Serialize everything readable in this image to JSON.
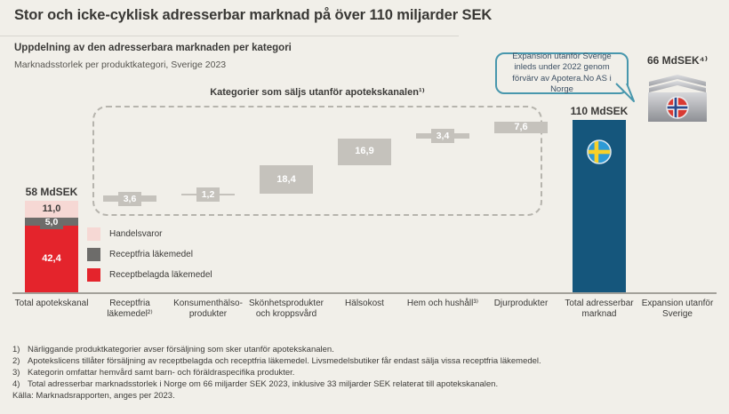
{
  "page": {
    "title": "Stor och icke-cyklisk adresserbar marknad på över 110 miljarder SEK",
    "subtitle": "Uppdelning av den adresserbara marknaden per kategori",
    "description": "Marknadsstorlek per produktkategori, Sverige 2023"
  },
  "callout": {
    "text": "Expansion utanför Sverige inleds under 2022 genom förvärv av Apotera.No AS i Norge",
    "border_color": "#4897ad"
  },
  "chart_data": {
    "type": "waterfall",
    "unit": "MdSEK",
    "axis_max": 110,
    "group_box_label": "Kategorier som säljs utanför apotekskanalen¹⁾",
    "colors": {
      "waterfall_bar": "#c5c2bc",
      "total_bar": "#15567c",
      "background": "#f1efe9"
    },
    "start_bar": {
      "category": "Total apotekskanal",
      "total": 58,
      "total_label": "58 MdSEK",
      "segments": [
        {
          "name": "Receptbelagda läkemedel",
          "value": 42.4,
          "label": "42,4",
          "color": "#e4242c"
        },
        {
          "name": "Receptfria läkemedel",
          "value": 5.0,
          "label": "5,0",
          "color": "#6d6c6a"
        },
        {
          "name": "Handelsvaror",
          "value": 11.0,
          "label": "11,0",
          "color": "#f6d8d4",
          "label_color": "#3b3a38"
        }
      ]
    },
    "waterfall_bars": [
      {
        "category": "Receptfria läkemedel²⁾",
        "value": 3.6,
        "label": "3,6"
      },
      {
        "category": "Konsumenthälso-produkter",
        "value": 1.2,
        "label": "1,2"
      },
      {
        "category": "Skönhetsprodukter och kroppsvård",
        "value": 18.4,
        "label": "18,4"
      },
      {
        "category": "Hälsokost",
        "value": 16.9,
        "label": "16,9"
      },
      {
        "category": "Hem och hushåll³⁾",
        "value": 3.4,
        "label": "3,4"
      },
      {
        "category": "Djurprodukter",
        "value": 7.6,
        "label": "7,6"
      }
    ],
    "total_bar": {
      "category": "Total adresserbar marknad",
      "value": 110,
      "label": "110 MdSEK",
      "flag": "sweden"
    },
    "expansion_bar": {
      "category": "Expansion utanför Sverige",
      "label": "66 MdSEK⁴⁾",
      "flag": "norway"
    }
  },
  "legend": [
    {
      "label": "Handelsvaror",
      "color": "#f6d8d4"
    },
    {
      "label": "Receptfria läkemedel",
      "color": "#6d6c6a"
    },
    {
      "label": "Receptbelagda läkemedel",
      "color": "#e4242c"
    }
  ],
  "footnotes": [
    {
      "num": "1)",
      "text": "Närliggande produktkategorier avser försäljning som sker utanför apotekskanalen."
    },
    {
      "num": "2)",
      "text": "Apotekslicens tillåter försäljning av receptbelagda och receptfria läkemedel. Livsmedelsbutiker får endast sälja vissa receptfria läkemedel."
    },
    {
      "num": "3)",
      "text": "Kategorin omfattar hemvård samt barn- och föräldraspecifika produkter."
    },
    {
      "num": "4)",
      "text": "Total adresserbar marknadsstorlek i Norge om 66 miljarder SEK 2023, inklusive 33 miljarder SEK relaterat till apotekskanalen."
    }
  ],
  "source": "Källa: Marknadsrapporten, anges per 2023."
}
